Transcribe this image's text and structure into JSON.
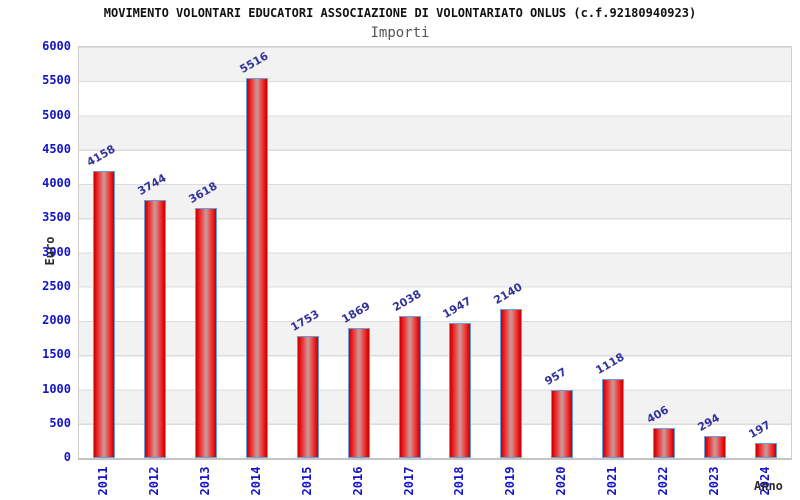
{
  "header": {
    "title": "MOVIMENTO VOLONTARI EDUCATORI ASSOCIAZIONE DI VOLONTARIATO ONLUS (c.f.92180940923)",
    "subtitle": "Importi"
  },
  "axes": {
    "ylabel": "Euro",
    "xlabel": "Anno"
  },
  "chart_data": {
    "type": "bar",
    "title": "MOVIMENTO VOLONTARI EDUCATORI ASSOCIAZIONE DI VOLONTARIATO ONLUS (c.f.92180940923)",
    "subtitle": "Importi",
    "xlabel": "Anno",
    "ylabel": "Euro",
    "categories": [
      "2011",
      "2012",
      "2013",
      "2014",
      "2015",
      "2016",
      "2017",
      "2018",
      "2019",
      "2020",
      "2021",
      "2022",
      "2023",
      "2024"
    ],
    "values": [
      4158,
      3744,
      3618,
      5516,
      1753,
      1869,
      2038,
      1947,
      2140,
      957,
      1118,
      406,
      294,
      197
    ],
    "ylim": [
      0,
      6000
    ],
    "ytick_step": 500,
    "yticks": [
      0,
      500,
      1000,
      1500,
      2000,
      2500,
      3000,
      3500,
      4000,
      4500,
      5000,
      5500,
      6000
    ],
    "grid": "horizontal-bands",
    "legend": "none",
    "colors": {
      "bar_fill": "#e11212",
      "bar_center_highlight": "#cc9292",
      "bar_border": "#64a0dc",
      "tick_label": "#1414c8",
      "value_label": "#333399",
      "band_gray": "#f2f2f2",
      "grid_line": "#dcdcdc",
      "plot_border": "#cfcfcf",
      "title": "#111111",
      "subtitle": "#555555",
      "axis_title": "#2b2b2b"
    }
  }
}
